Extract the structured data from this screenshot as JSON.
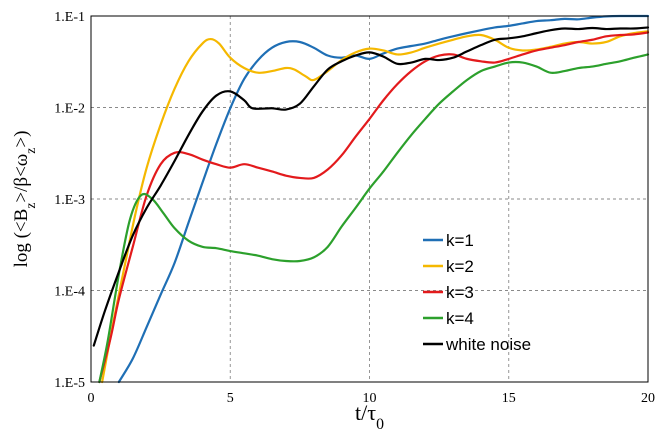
{
  "chart_data": {
    "type": "line",
    "xlabel": "t/τ0",
    "ylabel": "log (<Bz>/β<ωz>)",
    "x_ticks": [
      0,
      5,
      10,
      15,
      20
    ],
    "x_tick_labels": [
      "0",
      "5",
      "10",
      "15",
      "20"
    ],
    "xlim": [
      0,
      20
    ],
    "y_scale": "log",
    "ylim": [
      1e-05,
      0.1
    ],
    "y_ticks": [
      1e-05,
      0.0001,
      0.001,
      0.01,
      0.1
    ],
    "y_tick_labels": [
      "1.E-5",
      "1.E-4",
      "1.E-3",
      "1.E-2",
      "1.E-1"
    ],
    "grid": "dashed",
    "legend_position": "bottom-right",
    "series": [
      {
        "name": "k=1",
        "color": "#1f6fb5",
        "points": [
          [
            1.0,
            1e-05
          ],
          [
            1.5,
            1.8e-05
          ],
          [
            2.0,
            4e-05
          ],
          [
            2.5,
            9e-05
          ],
          [
            3.0,
            0.0002
          ],
          [
            3.5,
            0.00055
          ],
          [
            4.0,
            0.0015
          ],
          [
            4.5,
            0.004
          ],
          [
            5.0,
            0.0098
          ],
          [
            5.5,
            0.0205
          ],
          [
            6.0,
            0.033
          ],
          [
            6.5,
            0.045
          ],
          [
            7.0,
            0.052
          ],
          [
            7.5,
            0.052
          ],
          [
            8.0,
            0.045
          ],
          [
            8.5,
            0.037
          ],
          [
            9.0,
            0.035
          ],
          [
            9.5,
            0.037
          ],
          [
            10.0,
            0.034
          ],
          [
            10.5,
            0.039
          ],
          [
            11.0,
            0.044
          ],
          [
            11.5,
            0.047
          ],
          [
            12.0,
            0.05
          ],
          [
            12.5,
            0.055
          ],
          [
            13.0,
            0.06
          ],
          [
            13.5,
            0.065
          ],
          [
            14.0,
            0.07
          ],
          [
            14.5,
            0.075
          ],
          [
            15.0,
            0.078
          ],
          [
            15.5,
            0.083
          ],
          [
            16.0,
            0.088
          ],
          [
            16.5,
            0.09
          ],
          [
            17.0,
            0.093
          ],
          [
            17.5,
            0.092
          ],
          [
            18.0,
            0.096
          ],
          [
            18.5,
            0.099
          ],
          [
            19.0,
            0.1
          ],
          [
            20.0,
            0.1
          ]
        ]
      },
      {
        "name": "k=2",
        "color": "#f5b800",
        "points": [
          [
            0.4,
            1e-05
          ],
          [
            0.8,
            4.5e-05
          ],
          [
            1.2,
            0.00018
          ],
          [
            1.6,
            0.0007
          ],
          [
            2.0,
            0.0022
          ],
          [
            2.5,
            0.0065
          ],
          [
            3.0,
            0.016
          ],
          [
            3.5,
            0.032
          ],
          [
            4.0,
            0.05
          ],
          [
            4.3,
            0.056
          ],
          [
            4.6,
            0.05
          ],
          [
            5.0,
            0.035
          ],
          [
            5.5,
            0.027
          ],
          [
            6.0,
            0.024
          ],
          [
            6.5,
            0.025
          ],
          [
            7.0,
            0.027
          ],
          [
            7.3,
            0.026
          ],
          [
            7.7,
            0.022
          ],
          [
            8.0,
            0.02
          ],
          [
            8.5,
            0.025
          ],
          [
            9.0,
            0.033
          ],
          [
            9.5,
            0.04
          ],
          [
            10.0,
            0.044
          ],
          [
            10.5,
            0.042
          ],
          [
            11.0,
            0.038
          ],
          [
            11.5,
            0.04
          ],
          [
            12.0,
            0.045
          ],
          [
            12.5,
            0.05
          ],
          [
            13.0,
            0.055
          ],
          [
            13.5,
            0.06
          ],
          [
            14.0,
            0.062
          ],
          [
            14.5,
            0.055
          ],
          [
            15.0,
            0.045
          ],
          [
            15.5,
            0.042
          ],
          [
            16.0,
            0.043
          ],
          [
            16.5,
            0.046
          ],
          [
            17.0,
            0.05
          ],
          [
            17.5,
            0.052
          ],
          [
            18.0,
            0.05
          ],
          [
            18.5,
            0.052
          ],
          [
            19.0,
            0.06
          ],
          [
            19.5,
            0.065
          ],
          [
            20.0,
            0.068
          ]
        ]
      },
      {
        "name": "k=3",
        "color": "#e31a1c",
        "points": [
          [
            0.3,
            1e-05
          ],
          [
            0.7,
            3e-05
          ],
          [
            1.0,
            8e-05
          ],
          [
            1.5,
            0.0003
          ],
          [
            2.0,
            0.0011
          ],
          [
            2.5,
            0.0024
          ],
          [
            3.0,
            0.0032
          ],
          [
            3.5,
            0.0031
          ],
          [
            4.0,
            0.0027
          ],
          [
            4.5,
            0.0024
          ],
          [
            5.0,
            0.0022
          ],
          [
            5.5,
            0.0024
          ],
          [
            6.0,
            0.0022
          ],
          [
            6.5,
            0.002
          ],
          [
            7.0,
            0.0018
          ],
          [
            7.5,
            0.0017
          ],
          [
            8.0,
            0.0017
          ],
          [
            8.5,
            0.0021
          ],
          [
            9.0,
            0.003
          ],
          [
            9.5,
            0.0048
          ],
          [
            10.0,
            0.0075
          ],
          [
            10.5,
            0.012
          ],
          [
            11.0,
            0.018
          ],
          [
            11.5,
            0.025
          ],
          [
            12.0,
            0.032
          ],
          [
            12.5,
            0.037
          ],
          [
            13.0,
            0.038
          ],
          [
            13.5,
            0.034
          ],
          [
            14.0,
            0.032
          ],
          [
            14.5,
            0.031
          ],
          [
            15.0,
            0.034
          ],
          [
            15.5,
            0.038
          ],
          [
            16.0,
            0.042
          ],
          [
            16.5,
            0.045
          ],
          [
            17.0,
            0.048
          ],
          [
            17.5,
            0.052
          ],
          [
            18.0,
            0.055
          ],
          [
            18.5,
            0.06
          ],
          [
            19.0,
            0.062
          ],
          [
            19.5,
            0.063
          ],
          [
            20.0,
            0.066
          ]
        ]
      },
      {
        "name": "k=4",
        "color": "#2ca02c",
        "points": [
          [
            0.3,
            1e-05
          ],
          [
            0.6,
            2.8e-05
          ],
          [
            1.0,
            0.00015
          ],
          [
            1.4,
            0.0006
          ],
          [
            1.8,
            0.0011
          ],
          [
            2.2,
            0.001
          ],
          [
            2.6,
            0.0007
          ],
          [
            3.0,
            0.00048
          ],
          [
            3.5,
            0.00035
          ],
          [
            4.0,
            0.0003
          ],
          [
            4.5,
            0.00029
          ],
          [
            5.0,
            0.00027
          ],
          [
            5.5,
            0.000255
          ],
          [
            6.0,
            0.00024
          ],
          [
            6.5,
            0.00022
          ],
          [
            7.0,
            0.00021
          ],
          [
            7.5,
            0.00021
          ],
          [
            8.0,
            0.00023
          ],
          [
            8.5,
            0.0003
          ],
          [
            9.0,
            0.0005
          ],
          [
            9.5,
            0.0008
          ],
          [
            10.0,
            0.0013
          ],
          [
            10.5,
            0.002
          ],
          [
            11.0,
            0.0032
          ],
          [
            11.5,
            0.005
          ],
          [
            12.0,
            0.0075
          ],
          [
            12.5,
            0.011
          ],
          [
            13.0,
            0.015
          ],
          [
            13.5,
            0.02
          ],
          [
            14.0,
            0.025
          ],
          [
            14.5,
            0.028
          ],
          [
            15.0,
            0.031
          ],
          [
            15.5,
            0.031
          ],
          [
            16.0,
            0.028
          ],
          [
            16.5,
            0.024
          ],
          [
            17.0,
            0.025
          ],
          [
            17.5,
            0.027
          ],
          [
            18.0,
            0.028
          ],
          [
            18.5,
            0.03
          ],
          [
            19.0,
            0.032
          ],
          [
            19.5,
            0.035
          ],
          [
            20.0,
            0.038
          ]
        ]
      },
      {
        "name": "white noise",
        "color": "#000000",
        "points": [
          [
            0.1,
            2.5e-05
          ],
          [
            0.5,
            6e-05
          ],
          [
            1.0,
            0.00016
          ],
          [
            1.5,
            0.0004
          ],
          [
            2.0,
            0.0008
          ],
          [
            2.5,
            0.0014
          ],
          [
            3.0,
            0.0026
          ],
          [
            3.5,
            0.005
          ],
          [
            4.0,
            0.009
          ],
          [
            4.5,
            0.0135
          ],
          [
            5.0,
            0.015
          ],
          [
            5.5,
            0.012
          ],
          [
            5.8,
            0.0098
          ],
          [
            6.5,
            0.0098
          ],
          [
            7.0,
            0.0095
          ],
          [
            7.5,
            0.011
          ],
          [
            8.0,
            0.017
          ],
          [
            8.5,
            0.026
          ],
          [
            9.0,
            0.032
          ],
          [
            9.5,
            0.037
          ],
          [
            10.0,
            0.04
          ],
          [
            10.5,
            0.036
          ],
          [
            11.0,
            0.03
          ],
          [
            11.5,
            0.031
          ],
          [
            12.0,
            0.034
          ],
          [
            12.5,
            0.033
          ],
          [
            13.0,
            0.035
          ],
          [
            13.5,
            0.041
          ],
          [
            14.0,
            0.048
          ],
          [
            14.5,
            0.055
          ],
          [
            15.0,
            0.057
          ],
          [
            15.5,
            0.06
          ],
          [
            16.0,
            0.065
          ],
          [
            16.5,
            0.07
          ],
          [
            17.0,
            0.073
          ],
          [
            17.5,
            0.072
          ],
          [
            18.0,
            0.074
          ],
          [
            18.5,
            0.072
          ],
          [
            19.0,
            0.073
          ],
          [
            19.5,
            0.073
          ],
          [
            20.0,
            0.075
          ]
        ]
      }
    ]
  }
}
